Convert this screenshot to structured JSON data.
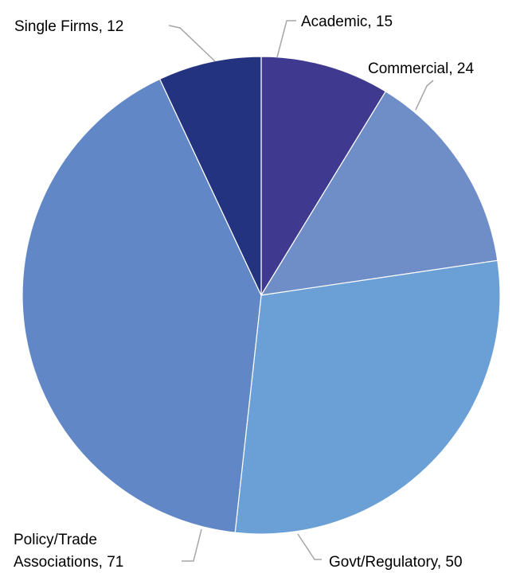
{
  "chart_data": {
    "type": "pie",
    "title": "",
    "slices": [
      {
        "label": "Academic",
        "value": 15,
        "display": "Academic, 15",
        "color": "#3f3a8f"
      },
      {
        "label": "Commercial",
        "value": 24,
        "display": "Commercial, 24",
        "color": "#6f8ec8"
      },
      {
        "label": "Govt/Regulatory",
        "value": 50,
        "display": "Govt/Regulatory, 50",
        "color": "#6aa0d6"
      },
      {
        "label": "Policy/Trade Associations",
        "value": 71,
        "display_lines": [
          "Policy/Trade",
          "Associations, 71"
        ],
        "color": "#6287c6"
      },
      {
        "label": "Single Firms",
        "value": 12,
        "display": "Single Firms, 12",
        "color": "#24337f"
      }
    ],
    "start_angle": "12 o'clock",
    "direction": "clockwise",
    "legend": "none",
    "data_labels": "outside with leader lines"
  }
}
